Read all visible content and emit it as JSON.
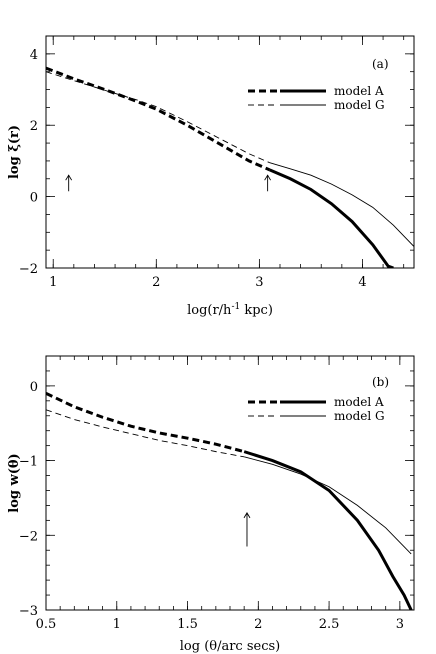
{
  "chart_data": [
    {
      "type": "line",
      "panel_label": "(a)",
      "xlabel_html": "log(r/h<tspan baseline-shift='super' font-size='9'>-1</tspan> kpc)",
      "xlabel": "log(r/h-1 kpc)",
      "ylabel": "log ξ(r)",
      "xlim": [
        0.93,
        4.5
      ],
      "ylim": [
        -2,
        4.5
      ],
      "xticks": [
        1,
        2,
        3,
        4
      ],
      "yticks": [
        -2,
        0,
        2,
        4
      ],
      "x_minor_step": 0.2,
      "y_minor_step": 0.5,
      "legend_position": "top-right",
      "arrows": [
        {
          "x": 1.15,
          "y_from": 0.15,
          "y_to": 0.6
        },
        {
          "x": 3.08,
          "y_from": 0.15,
          "y_to": 0.6
        }
      ],
      "series": [
        {
          "name": "model A",
          "color": "#000000",
          "weight": "thick",
          "dashed_until_x": 3.1,
          "x": [
            0.93,
            1.2,
            1.5,
            1.8,
            2.0,
            2.3,
            2.6,
            2.9,
            3.1,
            3.3,
            3.5,
            3.7,
            3.9,
            4.1,
            4.25,
            4.3
          ],
          "y": [
            3.6,
            3.3,
            3.0,
            2.68,
            2.45,
            2.0,
            1.5,
            1.0,
            0.75,
            0.5,
            0.2,
            -0.2,
            -0.7,
            -1.35,
            -1.95,
            -2.0
          ]
        },
        {
          "name": "model G",
          "color": "#000000",
          "weight": "thin",
          "dashed_until_x": 3.1,
          "x": [
            0.93,
            1.2,
            1.5,
            1.8,
            2.0,
            2.3,
            2.6,
            2.9,
            3.1,
            3.3,
            3.5,
            3.7,
            3.9,
            4.1,
            4.3,
            4.5
          ],
          "y": [
            3.5,
            3.25,
            2.98,
            2.72,
            2.52,
            2.1,
            1.65,
            1.2,
            0.95,
            0.78,
            0.6,
            0.35,
            0.05,
            -0.3,
            -0.8,
            -1.4
          ]
        }
      ]
    },
    {
      "type": "line",
      "panel_label": "(b)",
      "xlabel_html": "log (θ/arc secs)",
      "xlabel": "log (θ/arc secs)",
      "ylabel": "log w(θ)",
      "xlim": [
        0.5,
        3.1
      ],
      "ylim": [
        -3,
        0.4
      ],
      "xticks": [
        0.5,
        1,
        1.5,
        2,
        2.5,
        3
      ],
      "xtick_labels": [
        "0.5",
        "1",
        "1.5",
        "2",
        "2.5",
        "3"
      ],
      "yticks": [
        -3,
        -2,
        -1,
        0
      ],
      "x_minor_step": 0.1,
      "y_minor_step": 0.2,
      "legend_position": "top-right",
      "arrows": [
        {
          "x": 1.92,
          "y_from": -2.15,
          "y_to": -1.7
        }
      ],
      "series": [
        {
          "name": "model A",
          "color": "#000000",
          "weight": "thick",
          "dashed_until_x": 1.9,
          "x": [
            0.5,
            0.7,
            0.9,
            1.1,
            1.3,
            1.5,
            1.7,
            1.9,
            2.1,
            2.3,
            2.5,
            2.7,
            2.85,
            2.95,
            3.03,
            3.08
          ],
          "y": [
            -0.1,
            -0.28,
            -0.42,
            -0.54,
            -0.63,
            -0.7,
            -0.78,
            -0.88,
            -1.0,
            -1.15,
            -1.4,
            -1.8,
            -2.2,
            -2.55,
            -2.8,
            -3.0
          ]
        },
        {
          "name": "model G",
          "color": "#000000",
          "weight": "thin",
          "dashed_until_x": 1.9,
          "x": [
            0.5,
            0.7,
            0.9,
            1.1,
            1.3,
            1.5,
            1.7,
            1.9,
            2.1,
            2.3,
            2.5,
            2.7,
            2.9,
            3.08
          ],
          "y": [
            -0.32,
            -0.45,
            -0.55,
            -0.64,
            -0.73,
            -0.8,
            -0.88,
            -0.95,
            -1.05,
            -1.18,
            -1.35,
            -1.6,
            -1.9,
            -2.25
          ]
        }
      ]
    }
  ]
}
